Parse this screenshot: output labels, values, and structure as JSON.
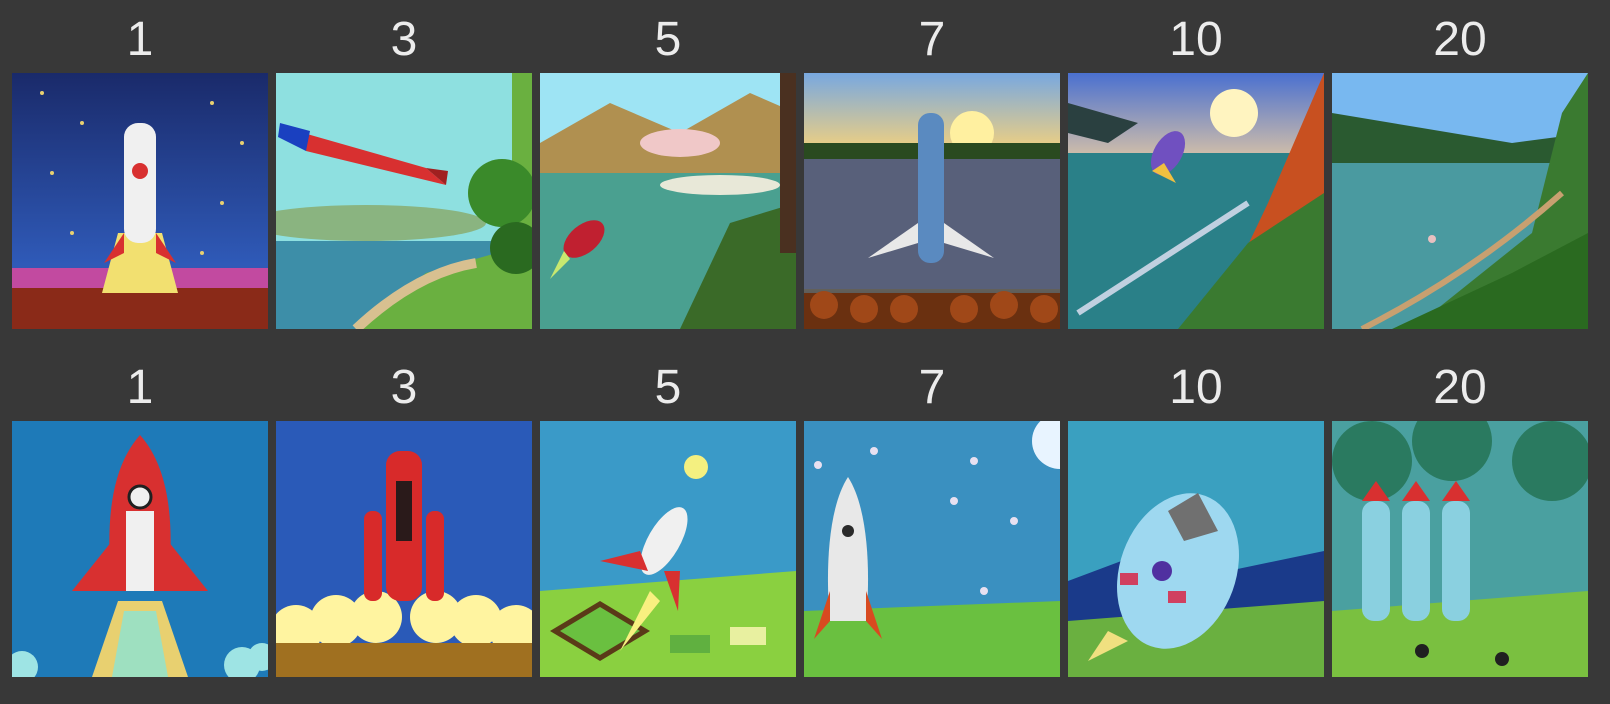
{
  "colors": {
    "background": "#383838",
    "label_text": "#ececec"
  },
  "rows": [
    {
      "cells": [
        {
          "label": "1",
          "image": "rocket-launch-night-sky-image"
        },
        {
          "label": "3",
          "image": "rocket-flying-over-lake-image"
        },
        {
          "label": "5",
          "image": "small-rocket-over-lake-image"
        },
        {
          "label": "7",
          "image": "rocket-over-sunset-lake-image"
        },
        {
          "label": "10",
          "image": "rocket-over-forest-lake-image"
        },
        {
          "label": "20",
          "image": "forest-lake-landscape-image"
        }
      ]
    },
    {
      "cells": [
        {
          "label": "1",
          "image": "red-rocket-liftoff-image"
        },
        {
          "label": "3",
          "image": "red-rocket-cloud-launch-image"
        },
        {
          "label": "5",
          "image": "rocket-over-field-image"
        },
        {
          "label": "7",
          "image": "silver-rocket-starry-sky-image"
        },
        {
          "label": "10",
          "image": "blue-capsule-rocket-image"
        },
        {
          "label": "20",
          "image": "triple-rockets-landscape-image"
        }
      ]
    }
  ]
}
